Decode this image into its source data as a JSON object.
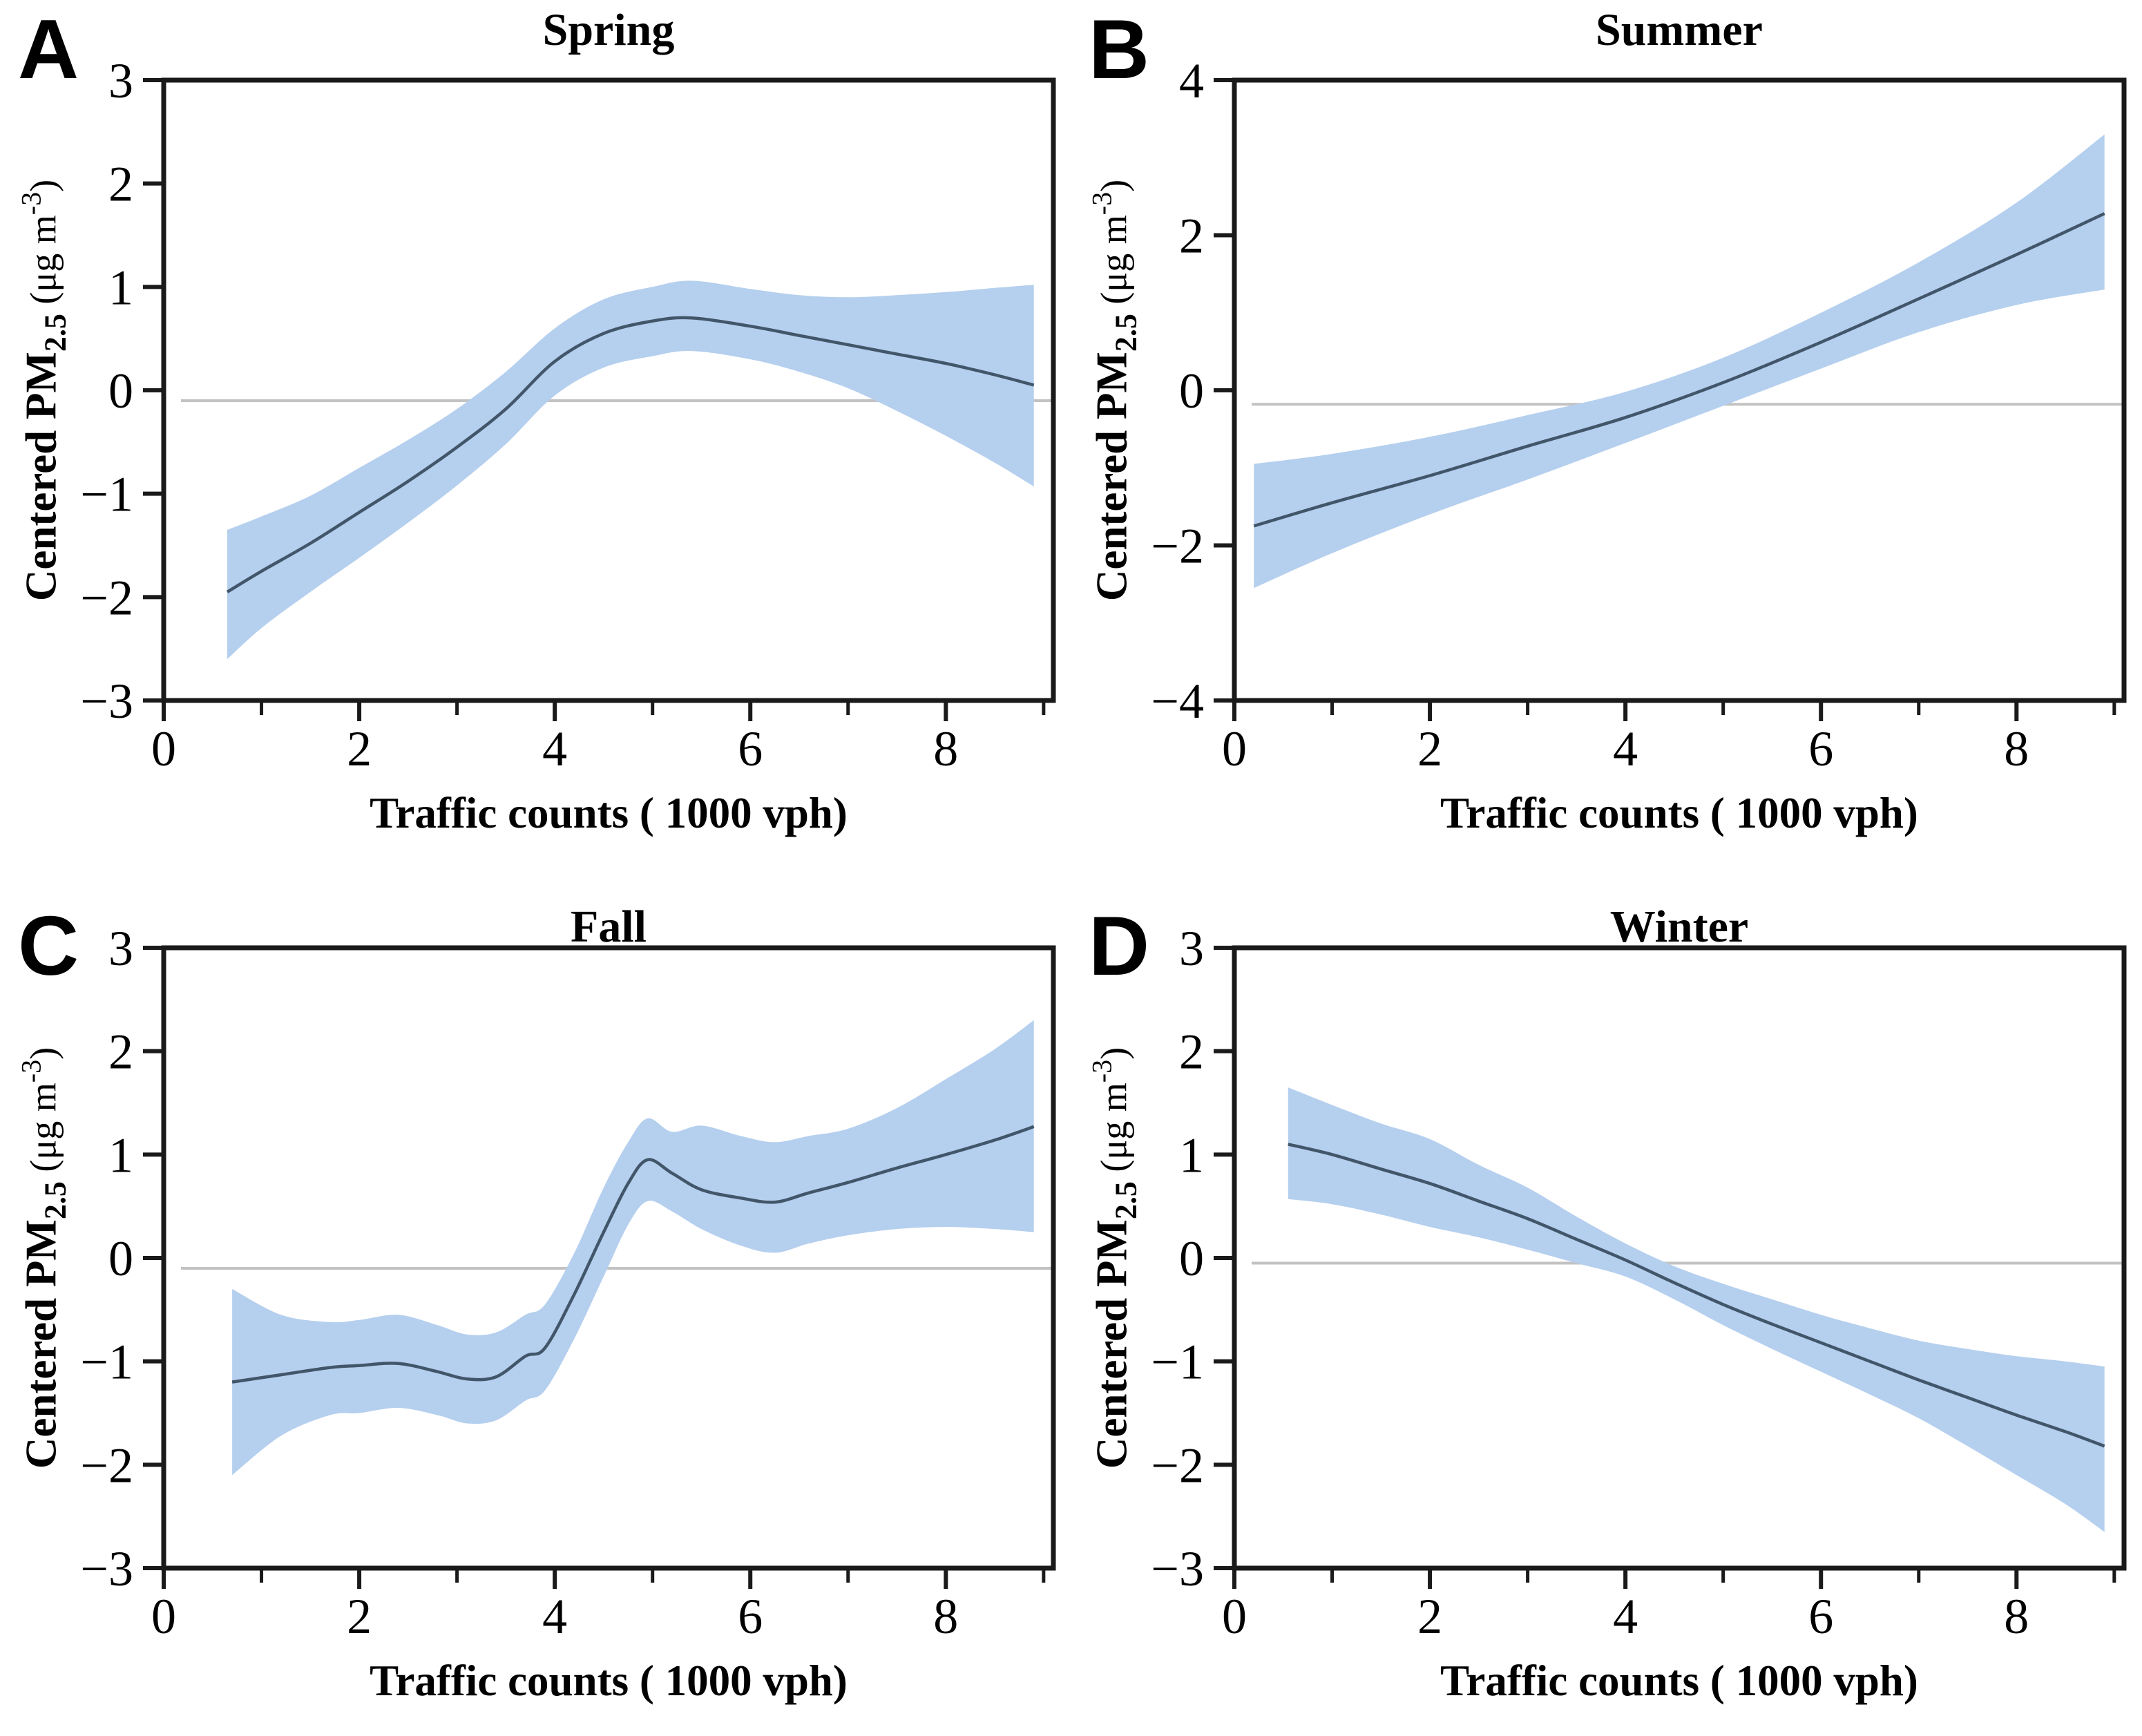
{
  "chart_data": {
    "type": "line",
    "layout": "2x2-grid",
    "shared": {
      "x_label": "Traffic counts ( 1000 vph)",
      "y_label": {
        "pre": "Centered PM",
        "sub": "2.5",
        "mid": " (μg m",
        "sup": "-3",
        "post": ")"
      },
      "xlim": [
        0,
        9.1
      ],
      "x_major_ticks": [
        0,
        2,
        4,
        6,
        8
      ],
      "x_minor_ticks": [
        1,
        3,
        5,
        7,
        9
      ],
      "grid": false,
      "legend": "none"
    },
    "colors": {
      "band": "#b5cfee",
      "mean_line": "#42566a",
      "reference_line": "#c2c2c2",
      "axis": "#1a1a1a",
      "text": "#000000",
      "background": "#ffffff"
    },
    "panels": [
      {
        "letter": "A",
        "title": "Spring",
        "ylim": [
          -3,
          3
        ],
        "y_ticks": [
          -3,
          -2,
          -1,
          0,
          1,
          2,
          3
        ],
        "ref_y": -0.1,
        "x": [
          0.65,
          1.0,
          1.5,
          2.0,
          2.5,
          3.0,
          3.5,
          4.0,
          4.5,
          5.0,
          5.4,
          6.0,
          6.5,
          7.0,
          7.5,
          8.0,
          8.5,
          8.9
        ],
        "mean": [
          -1.95,
          -1.75,
          -1.48,
          -1.18,
          -0.88,
          -0.55,
          -0.18,
          0.28,
          0.55,
          0.67,
          0.7,
          0.62,
          0.53,
          0.44,
          0.35,
          0.26,
          0.15,
          0.05
        ],
        "lower": [
          -2.6,
          -2.3,
          -1.95,
          -1.62,
          -1.28,
          -0.92,
          -0.52,
          -0.05,
          0.22,
          0.33,
          0.38,
          0.3,
          0.18,
          0.02,
          -0.2,
          -0.44,
          -0.7,
          -0.93
        ],
        "upper": [
          -1.35,
          -1.22,
          -1.02,
          -0.75,
          -0.48,
          -0.18,
          0.18,
          0.6,
          0.88,
          1.0,
          1.06,
          0.98,
          0.92,
          0.9,
          0.92,
          0.95,
          0.99,
          1.02
        ]
      },
      {
        "letter": "B",
        "title": "Summer",
        "ylim": [
          -4,
          4
        ],
        "y_ticks": [
          -4,
          -2,
          0,
          2,
          4
        ],
        "ref_y": -0.18,
        "x": [
          0.2,
          1.0,
          2.0,
          3.0,
          4.0,
          5.0,
          6.0,
          7.0,
          8.0,
          8.9
        ],
        "mean": [
          -1.75,
          -1.45,
          -1.1,
          -0.72,
          -0.35,
          0.1,
          0.62,
          1.18,
          1.75,
          2.28
        ],
        "lower": [
          -2.55,
          -2.1,
          -1.6,
          -1.15,
          -0.68,
          -0.2,
          0.28,
          0.75,
          1.1,
          1.3
        ],
        "upper": [
          -0.95,
          -0.82,
          -0.6,
          -0.32,
          -0.02,
          0.42,
          1.0,
          1.65,
          2.42,
          3.3
        ]
      },
      {
        "letter": "C",
        "title": "Fall",
        "ylim": [
          -3,
          3
        ],
        "y_ticks": [
          -3,
          -2,
          -1,
          0,
          1,
          2,
          3
        ],
        "ref_y": -0.1,
        "x": [
          0.7,
          1.2,
          1.7,
          2.0,
          2.4,
          2.8,
          3.1,
          3.4,
          3.7,
          3.9,
          4.2,
          4.5,
          4.75,
          4.95,
          5.2,
          5.5,
          5.9,
          6.25,
          6.6,
          7.0,
          7.5,
          8.0,
          8.5,
          8.9
        ],
        "mean": [
          -1.2,
          -1.13,
          -1.06,
          -1.04,
          -1.02,
          -1.1,
          -1.17,
          -1.15,
          -0.95,
          -0.87,
          -0.35,
          0.25,
          0.72,
          0.95,
          0.82,
          0.66,
          0.58,
          0.54,
          0.63,
          0.73,
          0.87,
          1.0,
          1.14,
          1.27
        ],
        "lower": [
          -2.1,
          -1.72,
          -1.52,
          -1.5,
          -1.45,
          -1.52,
          -1.6,
          -1.57,
          -1.38,
          -1.28,
          -0.78,
          -0.18,
          0.32,
          0.55,
          0.45,
          0.28,
          0.12,
          0.05,
          0.14,
          0.22,
          0.28,
          0.3,
          0.28,
          0.25
        ],
        "upper": [
          -0.3,
          -0.55,
          -0.62,
          -0.6,
          -0.55,
          -0.65,
          -0.74,
          -0.72,
          -0.55,
          -0.45,
          0.05,
          0.68,
          1.12,
          1.35,
          1.22,
          1.28,
          1.18,
          1.12,
          1.18,
          1.25,
          1.45,
          1.73,
          2.02,
          2.3
        ]
      },
      {
        "letter": "D",
        "title": "Winter",
        "ylim": [
          -3,
          3
        ],
        "y_ticks": [
          -3,
          -2,
          -1,
          0,
          1,
          2,
          3
        ],
        "ref_y": -0.05,
        "x": [
          0.55,
          1.0,
          1.5,
          2.0,
          2.5,
          3.0,
          3.5,
          4.0,
          4.5,
          5.0,
          5.5,
          6.0,
          6.5,
          7.0,
          7.5,
          8.0,
          8.5,
          8.9
        ],
        "mean": [
          1.1,
          1.0,
          0.86,
          0.72,
          0.55,
          0.38,
          0.18,
          -0.02,
          -0.24,
          -0.45,
          -0.64,
          -0.82,
          -1.0,
          -1.18,
          -1.35,
          -1.52,
          -1.68,
          -1.82
        ],
        "lower": [
          0.57,
          0.52,
          0.42,
          0.3,
          0.2,
          0.08,
          -0.05,
          -0.18,
          -0.4,
          -0.65,
          -0.88,
          -1.1,
          -1.32,
          -1.55,
          -1.82,
          -2.1,
          -2.38,
          -2.65
        ],
        "upper": [
          1.65,
          1.48,
          1.3,
          1.15,
          0.9,
          0.68,
          0.4,
          0.14,
          -0.08,
          -0.25,
          -0.4,
          -0.55,
          -0.68,
          -0.8,
          -0.88,
          -0.95,
          -1.0,
          -1.05
        ]
      }
    ]
  }
}
